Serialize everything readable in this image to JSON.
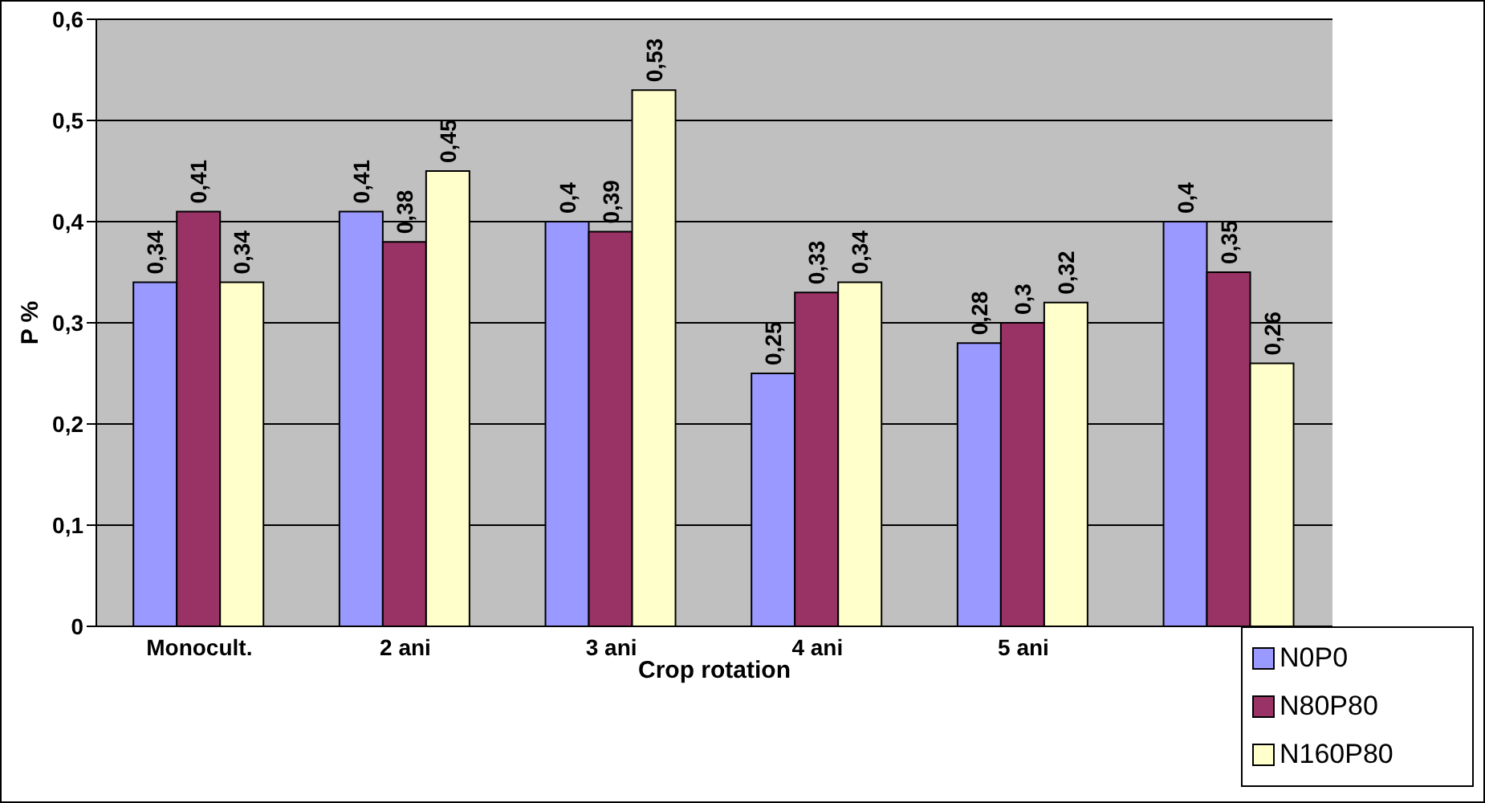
{
  "chart_data": {
    "type": "bar",
    "xlabel": "Crop rotation",
    "ylabel": "P %",
    "categories": [
      "Monocult.",
      "2 ani",
      "3 ani",
      "4 ani",
      "5 ani",
      null
    ],
    "series": [
      {
        "name": "N0P0",
        "color": "#9999ff",
        "values": [
          0.34,
          0.41,
          0.4,
          0.25,
          0.28,
          0.4
        ],
        "value_labels": [
          "0,34",
          "0,41",
          "0,4",
          "0,25",
          "0,28",
          "0,4"
        ]
      },
      {
        "name": "N80P80",
        "color": "#993366",
        "values": [
          0.41,
          0.38,
          0.39,
          0.33,
          0.3,
          0.35
        ],
        "value_labels": [
          "0,41",
          "0,38",
          "0,39",
          "0,33",
          "0,3",
          "0,35"
        ]
      },
      {
        "name": "N160P80",
        "color": "#ffffcc",
        "values": [
          0.34,
          0.45,
          0.53,
          0.34,
          0.32,
          0.26
        ],
        "value_labels": [
          "0,34",
          "0,45",
          "0,53",
          "0,34",
          "0,32",
          "0,26"
        ]
      }
    ],
    "ylim": [
      0,
      0.6
    ],
    "yticks": [
      {
        "value": 0,
        "label": "0"
      },
      {
        "value": 0.1,
        "label": "0,1"
      },
      {
        "value": 0.2,
        "label": "0,2"
      },
      {
        "value": 0.3,
        "label": "0,3"
      },
      {
        "value": 0.4,
        "label": "0,4"
      },
      {
        "value": 0.5,
        "label": "0,5"
      },
      {
        "value": 0.6,
        "label": "0,6"
      }
    ],
    "grid": "y",
    "legend": "bottom right"
  }
}
